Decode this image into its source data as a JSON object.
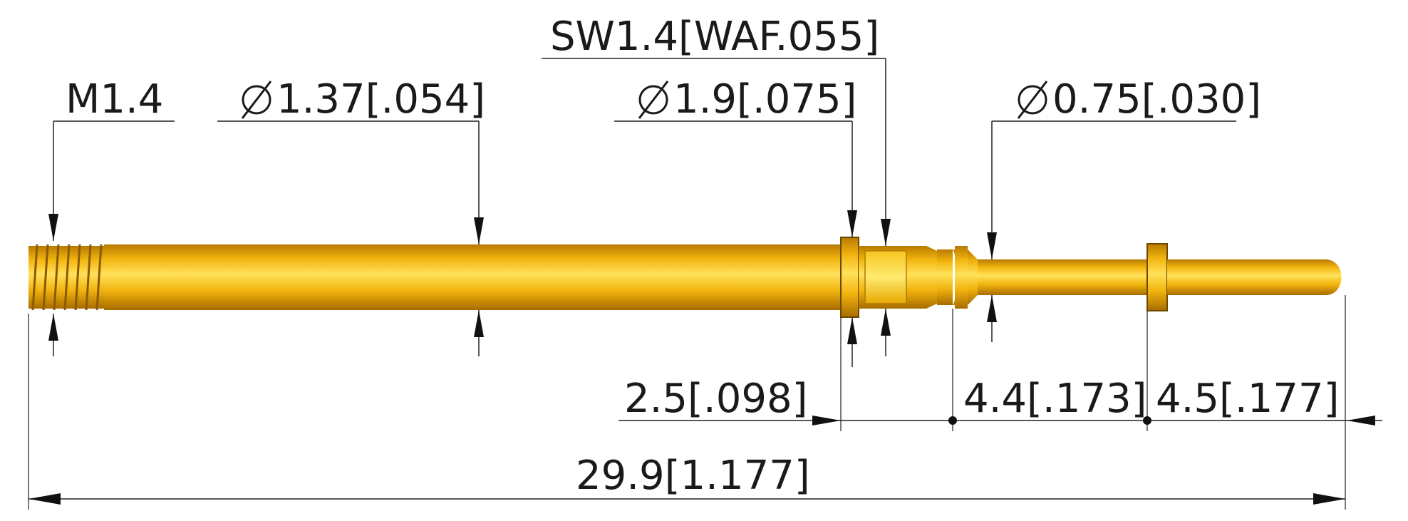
{
  "labels": {
    "thread": "M1.4",
    "body_dia": "1.37[.054]",
    "collar_dia": "1.9[.075]",
    "wrench_flat": "SW1.4[WAF.055]",
    "tip_dia": "0.75[.030]",
    "len_collar": "2.5[.098]",
    "len_neck": "4.4[.173]",
    "len_tip": "4.5[.177]",
    "len_total": "29.9[1.177]"
  },
  "symbols": {
    "diameter": "∅"
  },
  "colors": {
    "pin_gold": "#f2b50f",
    "pin_highlight": "#ffe15a",
    "pin_shadow": "#b87a00",
    "line": "#222222"
  }
}
